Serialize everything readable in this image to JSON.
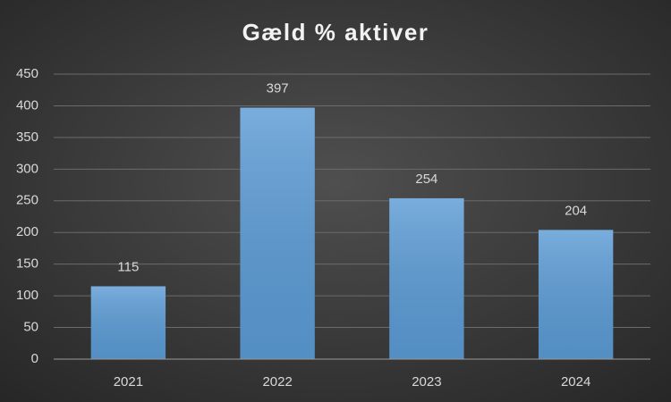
{
  "chart_data": {
    "type": "bar",
    "title": "Gæld % aktiver",
    "categories": [
      "2021",
      "2022",
      "2023",
      "2024"
    ],
    "values": [
      115,
      397,
      254,
      204
    ],
    "color": "#5b9bd5",
    "ylim": [
      0,
      450
    ],
    "yticks": [
      0,
      50,
      100,
      150,
      200,
      250,
      300,
      350,
      400,
      450
    ],
    "grid": true
  }
}
